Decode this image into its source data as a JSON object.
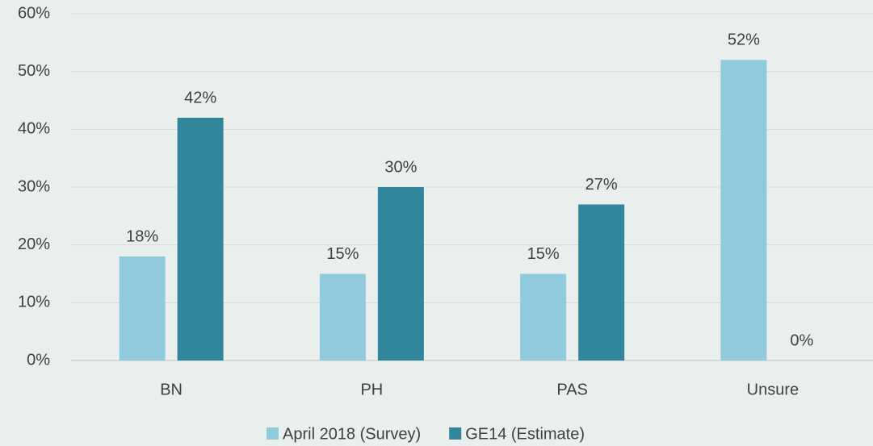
{
  "chart_data": {
    "type": "bar",
    "categories": [
      "BN",
      "PH",
      "PAS",
      "Unsure"
    ],
    "series": [
      {
        "name": "April 2018 (Survey)",
        "color": "#92cadd",
        "values": [
          18,
          15,
          15,
          52
        ],
        "value_labels": [
          "18%",
          "15%",
          "15%",
          "52%"
        ]
      },
      {
        "name": "GE14 (Estimate)",
        "color": "#31869b",
        "values": [
          42,
          30,
          27,
          0
        ],
        "value_labels": [
          "42%",
          "30%",
          "27%",
          "0%"
        ]
      }
    ],
    "ylim": [
      0,
      60
    ],
    "yticks": [
      {
        "value": 0,
        "label": "0%"
      },
      {
        "value": 10,
        "label": "10%"
      },
      {
        "value": 20,
        "label": "20%"
      },
      {
        "value": 30,
        "label": "30%"
      },
      {
        "value": 40,
        "label": "40%"
      },
      {
        "value": 50,
        "label": "50%"
      },
      {
        "value": 60,
        "label": "60%"
      }
    ],
    "grid": true,
    "legend": "bottom"
  }
}
